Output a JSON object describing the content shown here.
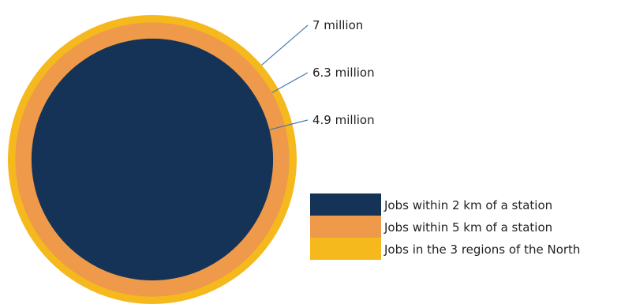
{
  "chart_data": {
    "type": "nested-circles",
    "title": "",
    "unit": "million",
    "series": [
      {
        "name": "Jobs in the 3 regions of the North",
        "value": 7.0,
        "label": "7 million",
        "color": "#F5B91E"
      },
      {
        "name": "Jobs within 5 km of a station",
        "value": 6.3,
        "label": "6.3 million",
        "color": "#EE9A4A"
      },
      {
        "name": "Jobs within 2 km of a station",
        "value": 4.9,
        "label": "4.9 million",
        "color": "#143356"
      }
    ],
    "legend": {
      "placement": "bottom-right",
      "order": [
        2,
        1,
        0
      ]
    },
    "leader_line_color": "#4A76A8"
  }
}
